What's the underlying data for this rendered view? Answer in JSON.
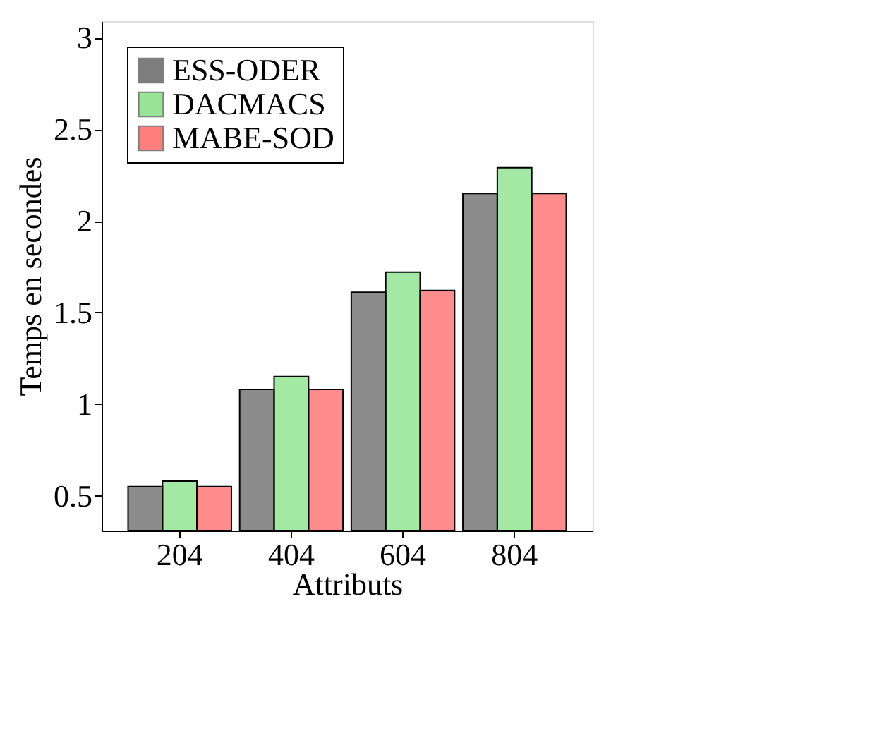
{
  "chart_data": {
    "type": "bar",
    "xlabel": "Attributs",
    "ylabel": "Temps en secondes",
    "categories": [
      "204",
      "404",
      "604",
      "804"
    ],
    "series": [
      {
        "name": "ESS-ODER",
        "color": "#000000",
        "values": [
          0.55,
          1.08,
          1.61,
          2.15
        ]
      },
      {
        "name": "DACMACS",
        "color": "#33cc33",
        "values": [
          0.58,
          1.15,
          1.72,
          2.29
        ]
      },
      {
        "name": "MABE-SOD",
        "color": "#ff0000",
        "values": [
          0.55,
          1.08,
          1.62,
          2.15
        ]
      }
    ],
    "ylim": [
      0.31,
      3.09
    ],
    "yticks": [
      0.5,
      1,
      1.5,
      2,
      2.5,
      3
    ],
    "grid": false,
    "legend": "top left"
  }
}
